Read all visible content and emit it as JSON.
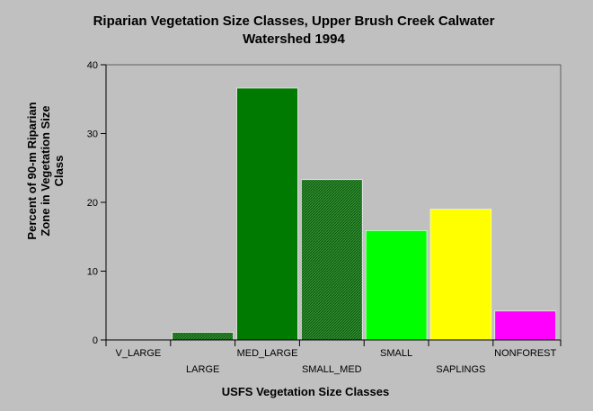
{
  "chart_data": {
    "type": "bar",
    "title_lines": [
      "Riparian Vegetation Size Classes, Upper Brush Creek Calwater",
      "Watershed 1994"
    ],
    "xlabel": "USFS Vegetation Size Classes",
    "ylabel_lines": [
      "Percent of 90-m Riparian",
      "Zone in Vegetation Size",
      "Class"
    ],
    "categories": [
      "V_LARGE",
      "LARGE",
      "MED_LARGE",
      "SMALL_MED",
      "SMALL",
      "SAPLINGS",
      "NONFOREST"
    ],
    "values": [
      0,
      1.1,
      36.6,
      23.3,
      15.9,
      19.0,
      4.2
    ],
    "colors": [
      "#006400",
      "#1e6e1e",
      "#007a00",
      "#2f8f2f",
      "#00ff00",
      "#ffff00",
      "#ff00ff"
    ],
    "hatched": [
      false,
      true,
      false,
      true,
      false,
      false,
      false
    ],
    "ylim": [
      0,
      40
    ],
    "yticks": [
      0,
      10,
      20,
      30,
      40
    ],
    "grid": false
  }
}
